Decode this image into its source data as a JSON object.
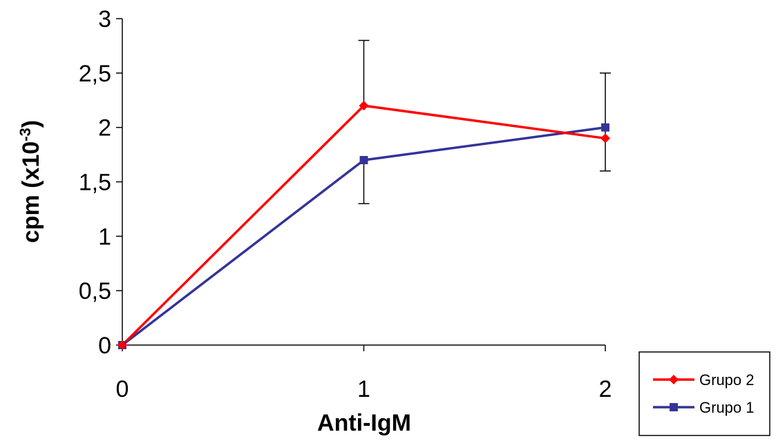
{
  "chart_data": {
    "type": "line",
    "title": "",
    "xlabel": "Anti-IgM",
    "ylabel": "cpm (x10",
    "ylabel_superscript": "-3",
    "ylabel_close": ")",
    "x": [
      0,
      1,
      2
    ],
    "x_tick_labels": [
      "0",
      "1",
      "2"
    ],
    "xlim": [
      0,
      2
    ],
    "ylim": [
      0,
      3
    ],
    "y_ticks": [
      0,
      0.5,
      1,
      1.5,
      2,
      2.5,
      3
    ],
    "y_tick_labels": [
      "0",
      "0,5",
      "1",
      "1,5",
      "2",
      "2,5",
      "3"
    ],
    "grid": false,
    "legend_position": "bottom-right",
    "series": [
      {
        "name": "Grupo 2",
        "color": "#ff0000",
        "marker": "diamond",
        "values": [
          0,
          2.2,
          1.9
        ],
        "error_upper": [
          0,
          2.8,
          2.5
        ],
        "error_lower": [
          0,
          2.2,
          1.6
        ]
      },
      {
        "name": "Grupo 1",
        "color": "#333399",
        "marker": "square",
        "values": [
          0,
          1.7,
          2.0
        ],
        "error_upper": [
          0,
          1.7,
          2.0
        ],
        "error_lower": [
          0,
          1.3,
          2.0
        ]
      }
    ]
  }
}
